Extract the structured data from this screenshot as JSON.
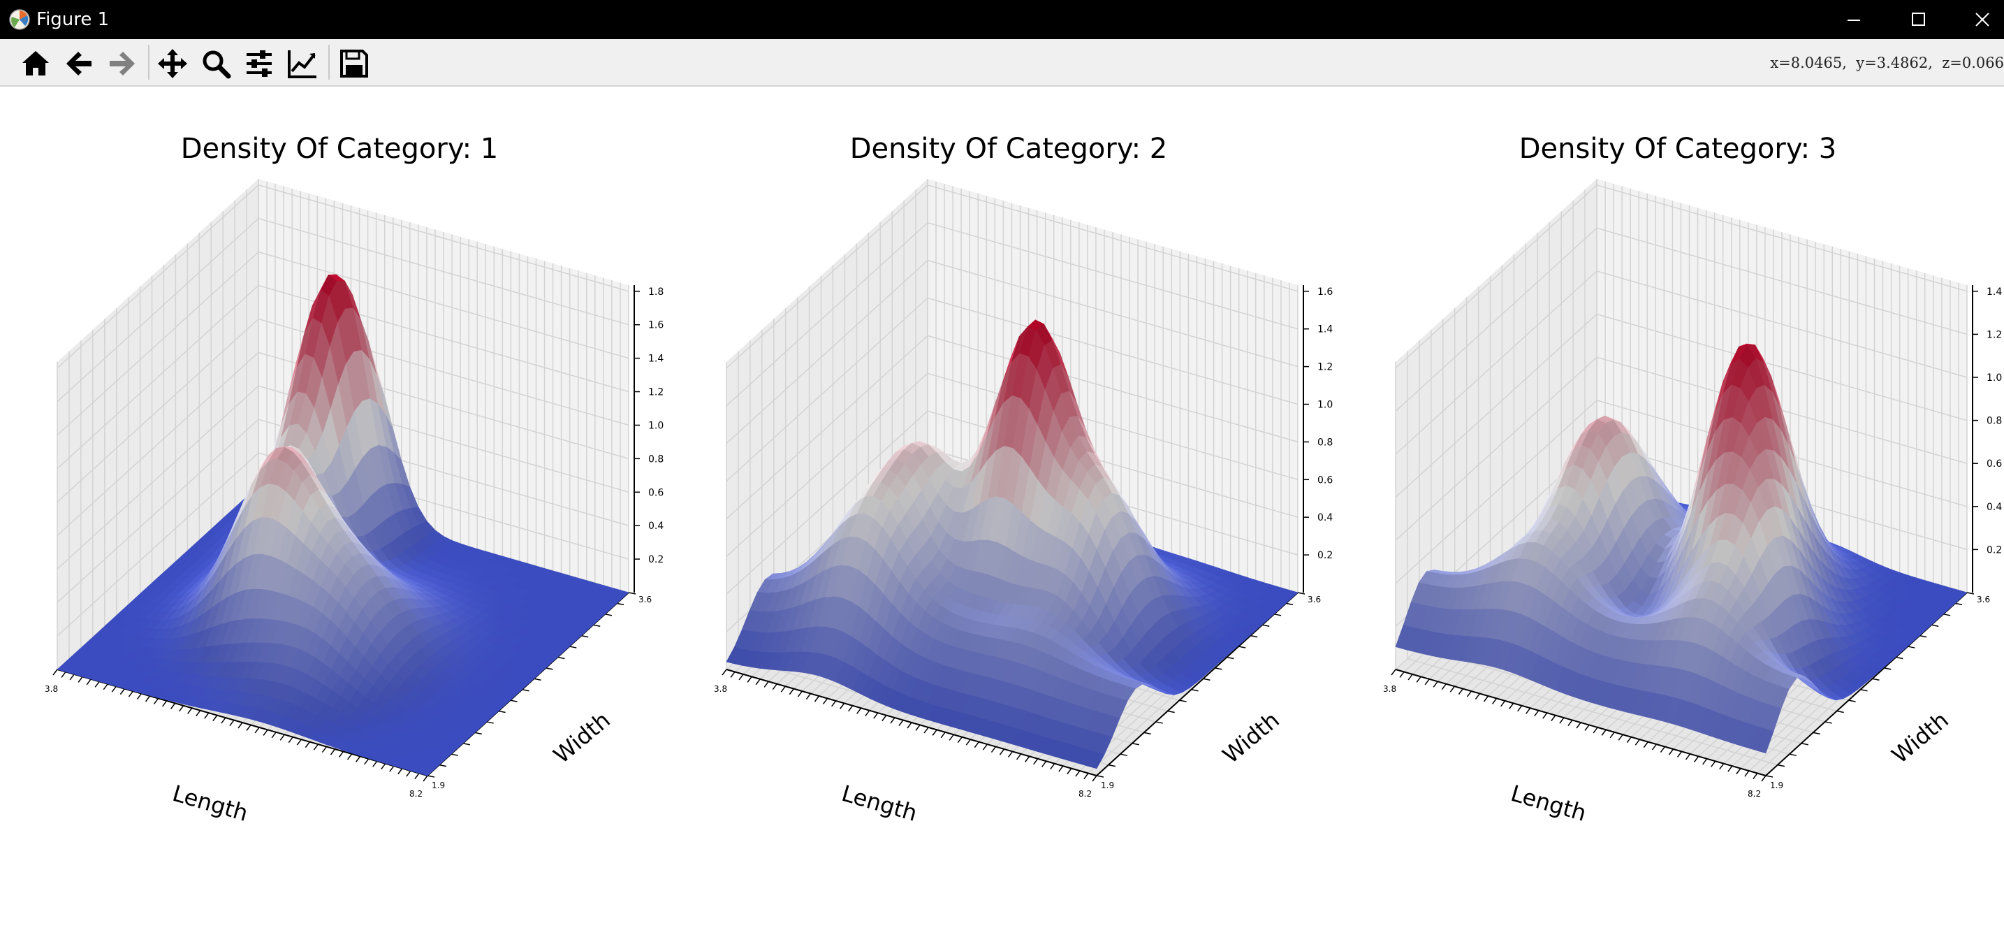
{
  "window": {
    "title": "Figure 1",
    "app_icon": "matplotlib-icon",
    "controls": [
      "minimize-icon",
      "maximize-icon",
      "close-icon"
    ]
  },
  "toolbar": {
    "buttons": [
      {
        "name": "home-button",
        "icon": "home-icon",
        "tooltip": "Reset original view"
      },
      {
        "name": "back-button",
        "icon": "arrow-left-icon",
        "tooltip": "Back to previous view"
      },
      {
        "name": "forward-button",
        "icon": "arrow-right-icon",
        "tooltip": "Forward to next view"
      },
      {
        "name": "pan-button",
        "icon": "move-icon",
        "tooltip": "Pan axes"
      },
      {
        "name": "zoom-button",
        "icon": "magnifier-icon",
        "tooltip": "Zoom to rectangle"
      },
      {
        "name": "subplots-button",
        "icon": "sliders-icon",
        "tooltip": "Configure subplots"
      },
      {
        "name": "edit-axis-button",
        "icon": "line-chart-icon",
        "tooltip": "Edit axis"
      },
      {
        "name": "save-button",
        "icon": "floppy-disk-icon",
        "tooltip": "Save the figure"
      }
    ],
    "coordinates": "x=8.0465,  y=3.4862,  z=0.066"
  },
  "colors": {
    "titlebar": "#000000",
    "toolbar": "#f0f0f0",
    "pane": "#f2f2f2",
    "grid": "#d3d3d3",
    "surface_low": "#3b4cc0",
    "surface_mid": "#dddcdc",
    "surface_high": "#b40426"
  },
  "chart_data": [
    {
      "type": "surface3d",
      "title": "Density Of Category: 1",
      "xlabel": "Length",
      "ylabel": "Width",
      "zlabel": "",
      "colormap": "coolwarm",
      "xlim": [
        3.8,
        8.2
      ],
      "ylim": [
        1.9,
        3.6
      ],
      "zticks": [
        "0.2",
        "0.4",
        "0.6",
        "0.8",
        "1.0",
        "1.2",
        "1.4",
        "1.6",
        "1.8"
      ],
      "peak": {
        "x": 5.0,
        "y": 3.4,
        "z": 1.8
      },
      "grid": true
    },
    {
      "type": "surface3d",
      "title": "Density Of Category: 2",
      "xlabel": "Length",
      "ylabel": "Width",
      "zlabel": "",
      "colormap": "coolwarm",
      "xlim": [
        3.8,
        8.2
      ],
      "ylim": [
        1.9,
        3.6
      ],
      "zticks": [
        "0.2",
        "0.4",
        "0.6",
        "0.8",
        "1.0",
        "1.2",
        "1.4",
        "1.6"
      ],
      "peak": {
        "x": 5.9,
        "y": 2.8,
        "z": 1.6
      },
      "grid": true
    },
    {
      "type": "surface3d",
      "title": "Density Of Category: 3",
      "xlabel": "Length",
      "ylabel": "Width",
      "zlabel": "",
      "colormap": "coolwarm",
      "xlim": [
        3.8,
        8.2
      ],
      "ylim": [
        1.9,
        3.6
      ],
      "zticks": [
        "0.2",
        "0.4",
        "0.6",
        "0.8",
        "1.0",
        "1.2",
        "1.4"
      ],
      "peak": {
        "x": 6.5,
        "y": 3.0,
        "z": 1.4
      },
      "grid": true
    }
  ]
}
